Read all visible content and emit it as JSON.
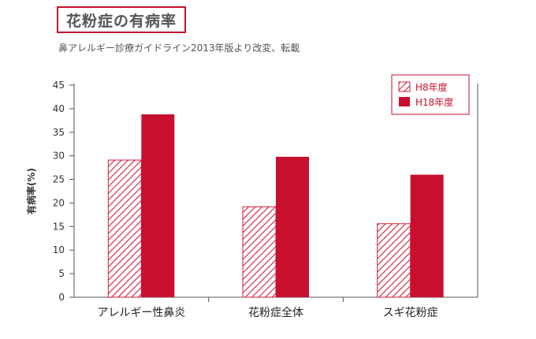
{
  "header": {
    "title": "花粉症の有病率",
    "subtitle": "鼻アレルギー診療ガイドライン2013年版より改変、転載"
  },
  "colors": {
    "accent": "#c8102e",
    "hatch": "#d21f3c",
    "axis": "#555555"
  },
  "chart_data": {
    "type": "bar",
    "categories": [
      "アレルギー性鼻炎",
      "花粉症全体",
      "スギ花粉症"
    ],
    "series": [
      {
        "name": "H8年度",
        "values": [
          29.1,
          19.2,
          15.6
        ],
        "style": "hatched"
      },
      {
        "name": "H18年度",
        "values": [
          38.8,
          29.8,
          26.0
        ],
        "style": "solid"
      }
    ],
    "ylabel": "有病率(%)",
    "xlabel": "",
    "ylim": [
      0,
      45
    ],
    "yticks": [
      0,
      5,
      10,
      15,
      20,
      25,
      30,
      35,
      40,
      45
    ],
    "legend_position": "top-right",
    "grid": false
  }
}
